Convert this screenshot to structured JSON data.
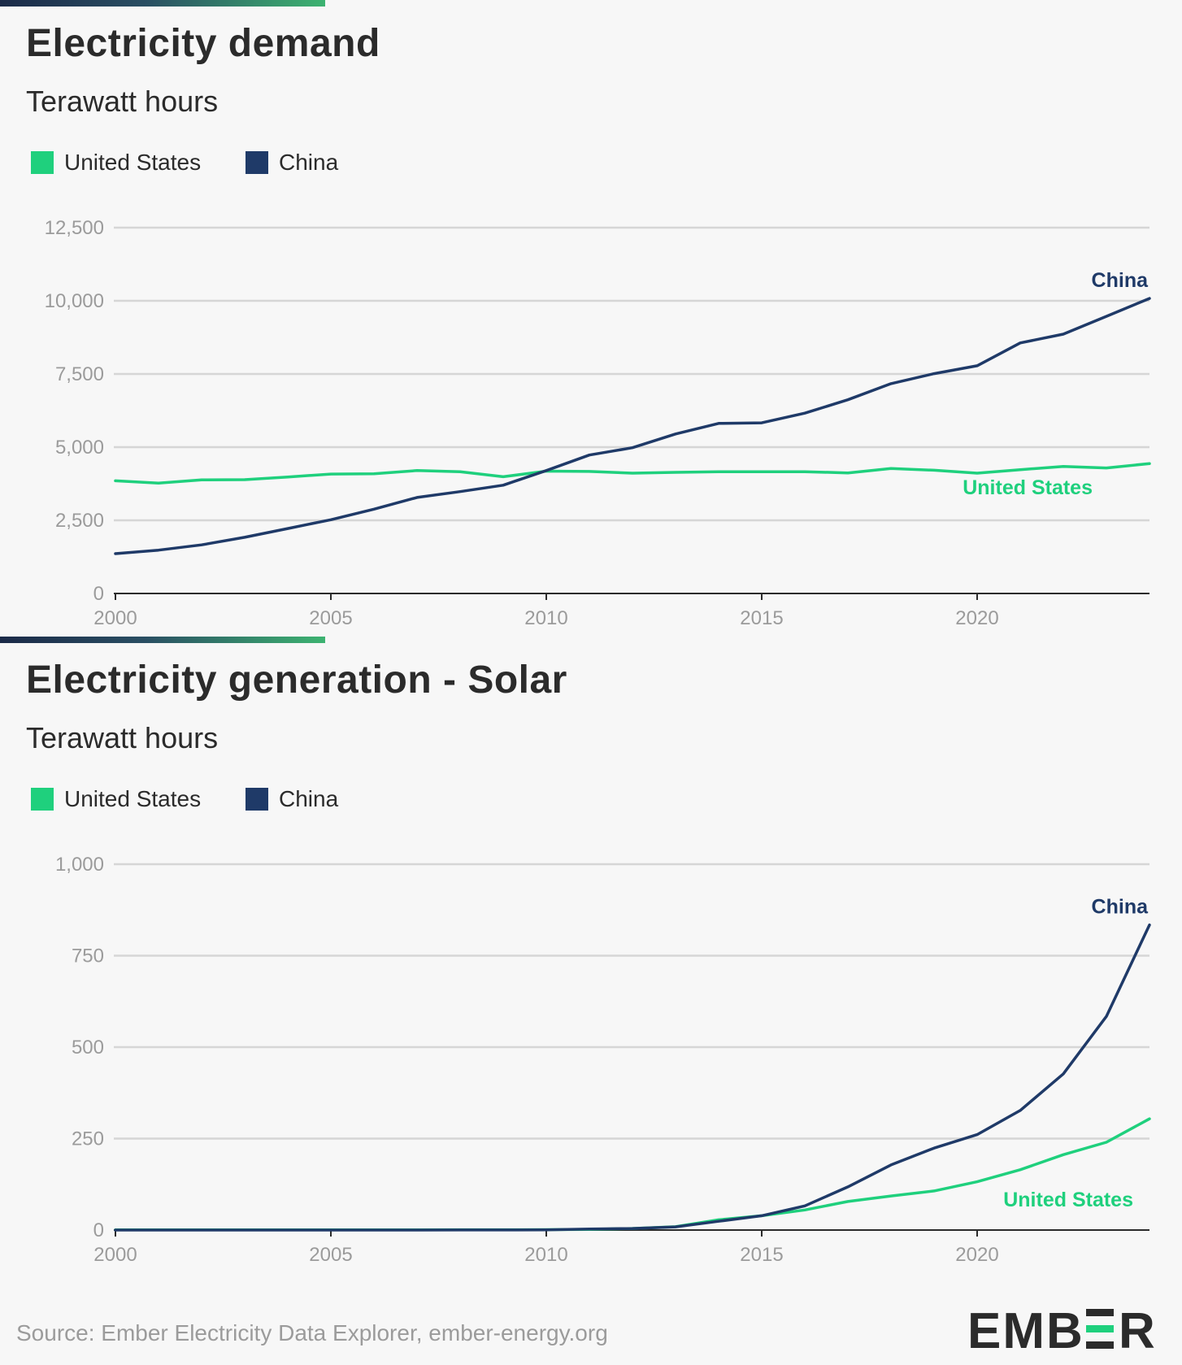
{
  "colors": {
    "us": "#1fd07d",
    "china": "#1f3a68",
    "grid": "#d6d6d6",
    "axis": "#2b2b2b",
    "tick": "#9b9b9b"
  },
  "panels": [
    {
      "title": "Electricity demand",
      "subtitle": "Terawatt hours",
      "legend": [
        {
          "label": "United States",
          "color": "#1fd07d"
        },
        {
          "label": "China",
          "color": "#1f3a68"
        }
      ]
    },
    {
      "title": "Electricity generation - Solar",
      "subtitle": "Terawatt hours",
      "legend": [
        {
          "label": "United States",
          "color": "#1fd07d"
        },
        {
          "label": "China",
          "color": "#1f3a68"
        }
      ]
    }
  ],
  "chart_data": [
    {
      "type": "line",
      "title": "Electricity demand",
      "ylabel": "Terawatt hours",
      "x": [
        2000,
        2001,
        2002,
        2003,
        2004,
        2005,
        2006,
        2007,
        2008,
        2009,
        2010,
        2011,
        2012,
        2013,
        2014,
        2015,
        2016,
        2017,
        2018,
        2019,
        2020,
        2021,
        2022,
        2023,
        2024
      ],
      "xlim": [
        2000,
        2024
      ],
      "ylim": [
        0,
        12500
      ],
      "x_ticks": [
        "2000",
        "2005",
        "2010",
        "2015",
        "2020"
      ],
      "x_tick_values": [
        2000,
        2005,
        2010,
        2015,
        2020
      ],
      "y_ticks": [
        "0",
        "2,500",
        "5,000",
        "7,500",
        "10,000",
        "12,500"
      ],
      "y_tick_values": [
        0,
        2500,
        5000,
        7500,
        10000,
        12500
      ],
      "grid": true,
      "series": [
        {
          "name": "United States",
          "values": [
            3850,
            3770,
            3880,
            3890,
            3980,
            4080,
            4090,
            4200,
            4160,
            3990,
            4180,
            4170,
            4110,
            4140,
            4160,
            4160,
            4160,
            4120,
            4270,
            4210,
            4110,
            4230,
            4340,
            4290,
            4440
          ]
        },
        {
          "name": "China",
          "values": [
            1360,
            1480,
            1660,
            1920,
            2220,
            2520,
            2880,
            3280,
            3480,
            3700,
            4200,
            4730,
            4980,
            5450,
            5810,
            5830,
            6160,
            6620,
            7170,
            7510,
            7780,
            8560,
            8860,
            9470,
            10080
          ]
        }
      ],
      "end_labels": [
        "China",
        "United States"
      ]
    },
    {
      "type": "line",
      "title": "Electricity generation - Solar",
      "ylabel": "Terawatt hours",
      "x": [
        2000,
        2001,
        2002,
        2003,
        2004,
        2005,
        2006,
        2007,
        2008,
        2009,
        2010,
        2011,
        2012,
        2013,
        2014,
        2015,
        2016,
        2017,
        2018,
        2019,
        2020,
        2021,
        2022,
        2023,
        2024
      ],
      "xlim": [
        2000,
        2024
      ],
      "ylim": [
        0,
        1000
      ],
      "x_ticks": [
        "2000",
        "2005",
        "2010",
        "2015",
        "2020"
      ],
      "x_tick_values": [
        2000,
        2005,
        2010,
        2015,
        2020
      ],
      "y_ticks": [
        "0",
        "250",
        "500",
        "750",
        "1,000"
      ],
      "y_tick_values": [
        0,
        250,
        500,
        750,
        1000
      ],
      "grid": true,
      "series": [
        {
          "name": "United States",
          "values": [
            0.5,
            0.5,
            0.6,
            0.5,
            0.6,
            0.6,
            0.5,
            0.6,
            0.9,
            0.9,
            1.2,
            1.8,
            4.3,
            9.0,
            28,
            39,
            55,
            78,
            93,
            107,
            132,
            165,
            206,
            240,
            304
          ]
        },
        {
          "name": "China",
          "values": [
            0,
            0,
            0,
            0,
            0,
            0,
            0.1,
            0.1,
            0.2,
            0.3,
            0.7,
            2.6,
            4.2,
            8.7,
            24,
            39,
            66,
            118,
            178,
            224,
            261,
            327,
            427,
            584,
            834
          ]
        }
      ],
      "end_labels": [
        "China",
        "United States"
      ]
    }
  ],
  "footer": {
    "source": "Source: Ember Electricity Data Explorer, ember-energy.org",
    "logo_text": "EMBER"
  }
}
